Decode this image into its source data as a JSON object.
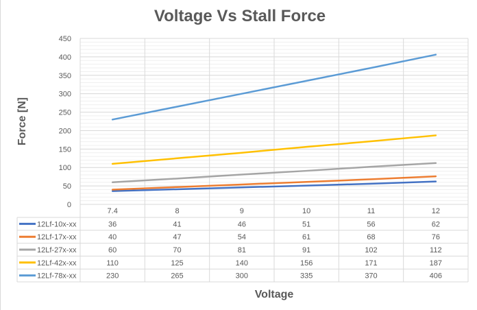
{
  "chart_data": {
    "type": "line",
    "title": "Voltage Vs Stall Force",
    "xlabel": "Voltage",
    "ylabel": "Force [N]",
    "categories": [
      "7.4",
      "8",
      "9",
      "10",
      "11",
      "12"
    ],
    "ylim": [
      0,
      450
    ],
    "yticks": [
      0,
      50,
      100,
      150,
      200,
      250,
      300,
      350,
      400,
      450
    ],
    "grid": true,
    "legend": "data-table",
    "series": [
      {
        "name": "12Lf-10x-xx",
        "color": "#4472C4",
        "values": [
          36,
          41,
          46,
          51,
          56,
          62
        ]
      },
      {
        "name": "12Lf-17x-xx",
        "color": "#ED7D31",
        "values": [
          40,
          47,
          54,
          61,
          68,
          76
        ]
      },
      {
        "name": "12Lf-27x-xx",
        "color": "#A5A5A5",
        "values": [
          60,
          70,
          81,
          91,
          102,
          112
        ]
      },
      {
        "name": "12Lf-42x-xx",
        "color": "#FFC000",
        "values": [
          110,
          125,
          140,
          156,
          171,
          187
        ]
      },
      {
        "name": "12Lf-78x-xx",
        "color": "#5B9BD5",
        "values": [
          230,
          265,
          300,
          335,
          370,
          406
        ]
      }
    ]
  }
}
